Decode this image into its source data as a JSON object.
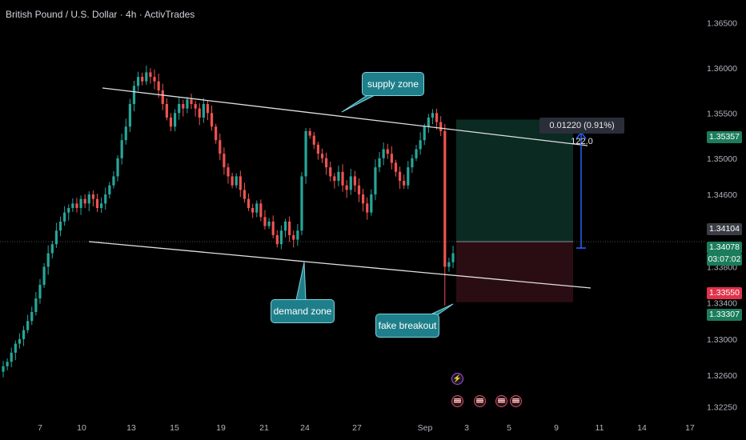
{
  "header": {
    "title": "British Pound / U.S. Dollar · 4h · ActivTrades"
  },
  "price_tags": {
    "target": "1.35357",
    "current_high": "1.34104",
    "current": "1.34078",
    "countdown": "03:07:02",
    "stop": "1.33550",
    "low": "1.33307"
  },
  "annotations": {
    "supply_zone": "supply zone",
    "demand_zone": "demand zone",
    "fake_breakout": "fake breakout",
    "measure": "0.01220 (0.91%) 122.0"
  },
  "events": {
    "bolt": "⚡",
    "flags": [
      "us-flag-icon",
      "us-flag-icon",
      "us-flag-icon",
      "uk-flag-icon"
    ]
  },
  "colors": {
    "background": "#000000",
    "bull": "#26a69a",
    "bear": "#ef5350",
    "callout": "#1e7f8a",
    "target_zone": "#0b2a22",
    "stop_zone": "#2a0d12",
    "measure_line": "#2962ff"
  },
  "chart_data": {
    "type": "candlestick",
    "symbol": "GBPUSD",
    "timeframe": "4h",
    "x_ticks": [
      "7",
      "10",
      "13",
      "15",
      "19",
      "21",
      "24",
      "27",
      "Sep",
      "3",
      "5",
      "9",
      "11",
      "14",
      "17"
    ],
    "y_ticks": [
      "1.36500",
      "1.36000",
      "1.35500",
      "1.35000",
      "1.34600",
      "1.33800",
      "1.33400",
      "1.33000",
      "1.32600",
      "1.32250"
    ],
    "y_range": [
      1.3215,
      1.3675
    ],
    "close_series": [
      1.327,
      1.3275,
      1.3285,
      1.3295,
      1.33,
      1.331,
      1.332,
      1.333,
      1.3345,
      1.336,
      1.338,
      1.3395,
      1.3405,
      1.342,
      1.343,
      1.344,
      1.3445,
      1.345,
      1.3445,
      1.3455,
      1.345,
      1.346,
      1.3455,
      1.3445,
      1.345,
      1.346,
      1.347,
      1.348,
      1.35,
      1.352,
      1.3535,
      1.356,
      1.358,
      1.359,
      1.3585,
      1.3595,
      1.359,
      1.3585,
      1.3575,
      1.356,
      1.3545,
      1.3535,
      1.355,
      1.356,
      1.3555,
      1.3565,
      1.356,
      1.3555,
      1.3545,
      1.356,
      1.355,
      1.3535,
      1.352,
      1.3505,
      1.349,
      1.348,
      1.347,
      1.348,
      1.3465,
      1.3455,
      1.3445,
      1.344,
      1.345,
      1.3435,
      1.3425,
      1.343,
      1.3415,
      1.3405,
      1.342,
      1.343,
      1.3415,
      1.341,
      1.342,
      1.348,
      1.353,
      1.3525,
      1.3515,
      1.3505,
      1.35,
      1.349,
      1.348,
      1.3475,
      1.3485,
      1.347,
      1.3465,
      1.348,
      1.347,
      1.346,
      1.345,
      1.344,
      1.346,
      1.349,
      1.35,
      1.351,
      1.3505,
      1.3495,
      1.3485,
      1.3475,
      1.347,
      1.349,
      1.35,
      1.351,
      1.352,
      1.3535,
      1.3545,
      1.355,
      1.354,
      1.353,
      1.338,
      1.3385,
      1.3395
    ],
    "trade_setup": {
      "entry": 1.34078,
      "target": 1.35357,
      "stop": 1.3355,
      "measure_change": "0.01220 (0.91%) 122.0"
    },
    "channel": {
      "upper_label": "supply zone",
      "lower_label": "demand zone"
    }
  }
}
